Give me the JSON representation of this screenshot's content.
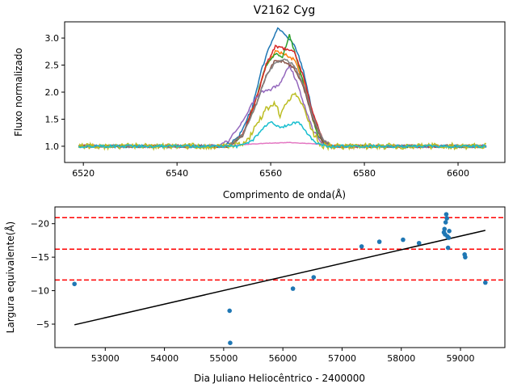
{
  "chart_data": [
    {
      "type": "line",
      "title": "V2162 Cyg",
      "xlabel": "Comprimento de onda(Å)",
      "ylabel": "Fluxo normalizado",
      "xlim": [
        6516,
        6610
      ],
      "ylim": [
        0.7,
        3.3
      ],
      "xticks": [
        6520,
        6540,
        6560,
        6580,
        6600
      ],
      "yticks": [
        1.0,
        1.5,
        2.0,
        2.5,
        3.0
      ],
      "ytick_labels": [
        "1.0",
        "1.5",
        "2.0",
        "2.5",
        "3.0"
      ],
      "grid": false,
      "series": [
        {
          "color": "#1f77b4",
          "x_range": [
            6519,
            6606
          ],
          "profile": [
            [
              6519,
              1.0
            ],
            [
              6550,
              1.0
            ],
            [
              6553,
              1.15
            ],
            [
              6556,
              1.7
            ],
            [
              6558,
              2.4
            ],
            [
              6560,
              2.9
            ],
            [
              6561.5,
              3.2
            ],
            [
              6563,
              3.05
            ],
            [
              6565,
              2.9
            ],
            [
              6567,
              2.4
            ],
            [
              6569,
              1.6
            ],
            [
              6571,
              1.1
            ],
            [
              6573,
              1.0
            ],
            [
              6606,
              1.0
            ]
          ]
        },
        {
          "color": "#ff7f0e",
          "x_range": [
            6519,
            6606
          ],
          "profile": [
            [
              6519,
              1.0
            ],
            [
              6551,
              1.0
            ],
            [
              6554,
              1.2
            ],
            [
              6557,
              1.9
            ],
            [
              6559,
              2.5
            ],
            [
              6561,
              2.75
            ],
            [
              6563,
              2.7
            ],
            [
              6565,
              2.6
            ],
            [
              6567,
              2.2
            ],
            [
              6569,
              1.5
            ],
            [
              6571,
              1.1
            ],
            [
              6573,
              1.0
            ],
            [
              6606,
              1.0
            ]
          ]
        },
        {
          "color": "#2ca02c",
          "x_range": [
            6519,
            6606
          ],
          "profile": [
            [
              6519,
              1.0
            ],
            [
              6551,
              1.0
            ],
            [
              6554,
              1.2
            ],
            [
              6557,
              1.9
            ],
            [
              6559,
              2.5
            ],
            [
              6561,
              2.7
            ],
            [
              6562.5,
              2.65
            ],
            [
              6564,
              3.05
            ],
            [
              6566,
              2.5
            ],
            [
              6568,
              1.8
            ],
            [
              6570,
              1.2
            ],
            [
              6572,
              1.0
            ],
            [
              6606,
              1.0
            ]
          ]
        },
        {
          "color": "#d62728",
          "x_range": [
            6519,
            6606
          ],
          "profile": [
            [
              6519,
              1.0
            ],
            [
              6551,
              1.0
            ],
            [
              6554,
              1.2
            ],
            [
              6557,
              1.9
            ],
            [
              6559,
              2.5
            ],
            [
              6561,
              2.85
            ],
            [
              6563,
              2.8
            ],
            [
              6565,
              2.75
            ],
            [
              6567,
              2.3
            ],
            [
              6569,
              1.6
            ],
            [
              6571,
              1.15
            ],
            [
              6573,
              1.0
            ],
            [
              6606,
              1.0
            ]
          ]
        },
        {
          "color": "#9467bd",
          "x_range": [
            6519,
            6606
          ],
          "profile": [
            [
              6519,
              1.0
            ],
            [
              6548,
              1.0
            ],
            [
              6551,
              1.1
            ],
            [
              6554,
              1.45
            ],
            [
              6556,
              1.8
            ],
            [
              6558,
              2.0
            ],
            [
              6560,
              2.05
            ],
            [
              6562,
              2.15
            ],
            [
              6564,
              2.5
            ],
            [
              6565.5,
              2.2
            ],
            [
              6567,
              1.8
            ],
            [
              6569,
              1.3
            ],
            [
              6571,
              1.05
            ],
            [
              6573,
              1.0
            ],
            [
              6606,
              1.0
            ]
          ]
        },
        {
          "color": "#8c564b",
          "x_range": [
            6519,
            6606
          ],
          "profile": [
            [
              6519,
              1.0
            ],
            [
              6551,
              1.0
            ],
            [
              6554,
              1.2
            ],
            [
              6557,
              1.8
            ],
            [
              6559,
              2.3
            ],
            [
              6561,
              2.6
            ],
            [
              6563,
              2.55
            ],
            [
              6565,
              2.45
            ],
            [
              6567,
              2.1
            ],
            [
              6569,
              1.5
            ],
            [
              6571,
              1.1
            ],
            [
              6573,
              1.0
            ],
            [
              6606,
              1.0
            ]
          ]
        },
        {
          "color": "#e377c2",
          "x_range": [
            6552,
            6572
          ],
          "profile": [
            [
              6552,
              1.02
            ],
            [
              6558,
              1.05
            ],
            [
              6564,
              1.07
            ],
            [
              6568,
              1.05
            ],
            [
              6572,
              1.03
            ]
          ]
        },
        {
          "color": "#7f7f7f",
          "x_range": [
            6519,
            6606
          ],
          "profile": [
            [
              6519,
              1.0
            ],
            [
              6551,
              1.0
            ],
            [
              6554,
              1.2
            ],
            [
              6557,
              1.8
            ],
            [
              6559,
              2.3
            ],
            [
              6561,
              2.55
            ],
            [
              6563,
              2.6
            ],
            [
              6565,
              2.5
            ],
            [
              6567,
              2.15
            ],
            [
              6569,
              1.55
            ],
            [
              6571,
              1.15
            ],
            [
              6573,
              1.0
            ],
            [
              6606,
              1.0
            ]
          ]
        },
        {
          "color": "#bcbd22",
          "x_range": [
            6519,
            6606
          ],
          "profile": [
            [
              6519,
              1.0
            ],
            [
              6552,
              1.0
            ],
            [
              6555,
              1.1
            ],
            [
              6557,
              1.4
            ],
            [
              6559,
              1.7
            ],
            [
              6561,
              1.8
            ],
            [
              6562,
              1.55
            ],
            [
              6563,
              1.75
            ],
            [
              6565,
              2.0
            ],
            [
              6567,
              1.7
            ],
            [
              6569,
              1.25
            ],
            [
              6571,
              1.0
            ],
            [
              6606,
              1.0
            ]
          ]
        },
        {
          "color": "#17becf",
          "x_range": [
            6519,
            6606
          ],
          "profile": [
            [
              6519,
              1.0
            ],
            [
              6553,
              1.0
            ],
            [
              6556,
              1.1
            ],
            [
              6558,
              1.3
            ],
            [
              6560,
              1.45
            ],
            [
              6562,
              1.35
            ],
            [
              6564,
              1.4
            ],
            [
              6566,
              1.45
            ],
            [
              6568,
              1.2
            ],
            [
              6570,
              1.05
            ],
            [
              6572,
              1.0
            ],
            [
              6606,
              1.0
            ]
          ]
        }
      ]
    },
    {
      "type": "scatter",
      "xlabel": "Dia Juliano Heliocêntrico - 2400000",
      "ylabel": "Largura equivalente(Å)",
      "xlim": [
        52150,
        59750
      ],
      "ylim": [
        -1.5,
        -22.5
      ],
      "xticks": [
        53000,
        54000,
        55000,
        56000,
        57000,
        58000,
        59000
      ],
      "yticks": [
        -5,
        -10,
        -15,
        -20
      ],
      "ytick_labels": [
        "−5",
        "−10",
        "−15",
        "−20"
      ],
      "grid": false,
      "points_color": "#1f77b4",
      "points": [
        [
          52480,
          -11.0
        ],
        [
          55100,
          -7.0
        ],
        [
          55110,
          -2.2
        ],
        [
          56170,
          -10.3
        ],
        [
          56520,
          -12.0
        ],
        [
          57330,
          -16.6
        ],
        [
          57630,
          -17.3
        ],
        [
          58030,
          -17.6
        ],
        [
          58300,
          -17.1
        ],
        [
          58720,
          -18.7
        ],
        [
          58730,
          -19.2
        ],
        [
          58740,
          -18.4
        ],
        [
          58750,
          -20.2
        ],
        [
          58760,
          -21.4
        ],
        [
          58770,
          -20.8
        ],
        [
          58780,
          -18.1
        ],
        [
          58790,
          -16.4
        ],
        [
          58800,
          -17.9
        ],
        [
          58810,
          -18.9
        ],
        [
          59070,
          -15.4
        ],
        [
          59080,
          -15.0
        ],
        [
          59420,
          -11.2
        ]
      ],
      "fit_line": {
        "color": "#000000",
        "x": [
          52480,
          59420
        ],
        "y": [
          -4.9,
          -19.0
        ]
      },
      "hlines": [
        {
          "y": -20.9,
          "color": "#ff0000",
          "style": "dashed"
        },
        {
          "y": -16.2,
          "color": "#ff0000",
          "style": "dashed"
        },
        {
          "y": -11.6,
          "color": "#ff0000",
          "style": "dashed"
        }
      ]
    }
  ]
}
